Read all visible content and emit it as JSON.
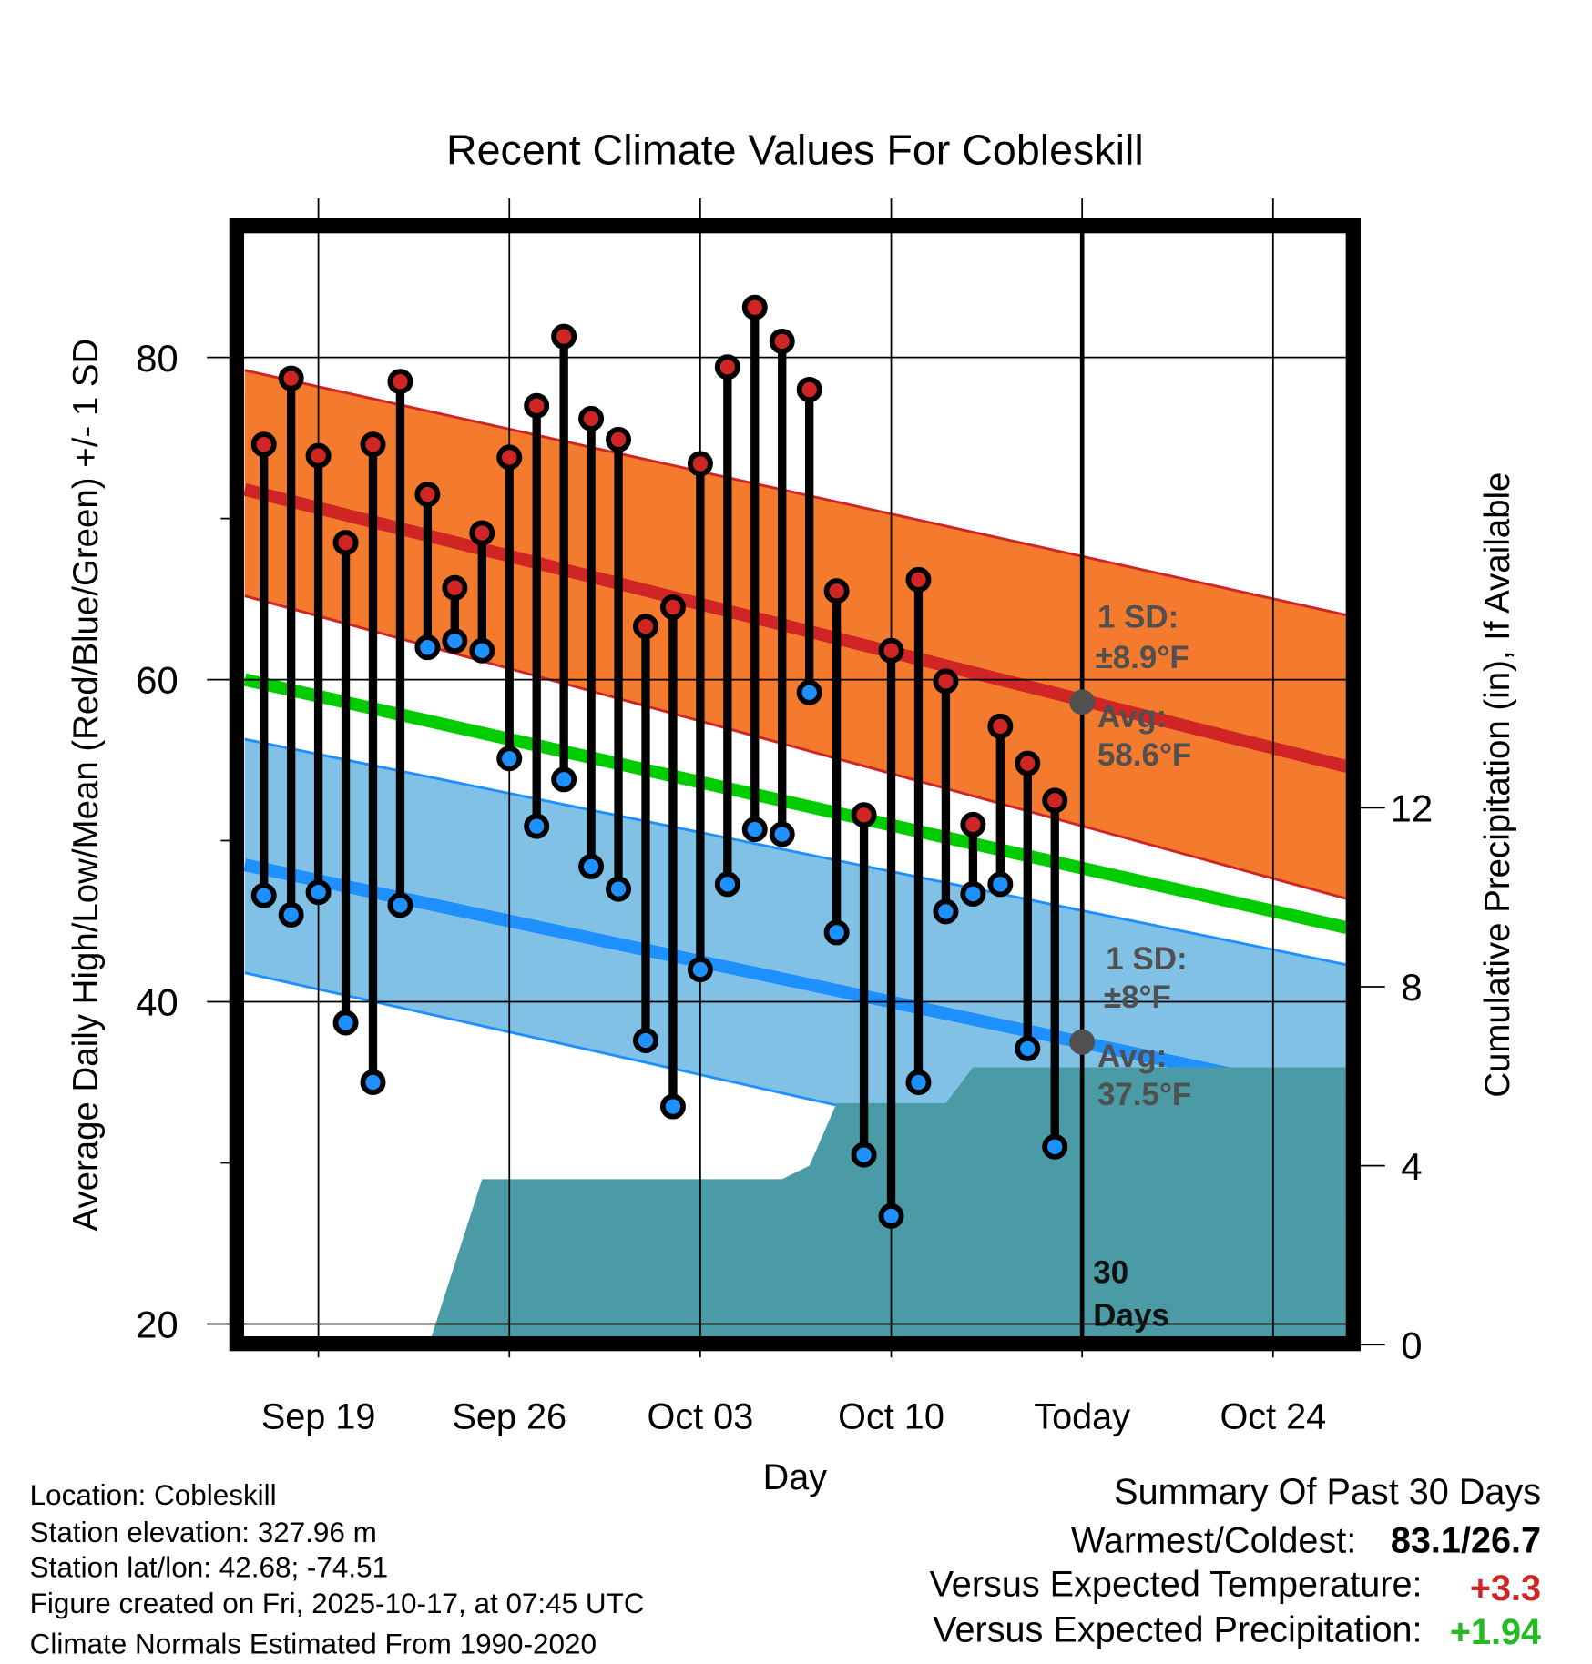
{
  "chart_data": {
    "type": "line",
    "title": "Recent Climate Values For Cobleskill",
    "xlabel": "Day",
    "ylabel": "Average Daily High/Low/Mean (Red/Blue/Green) +/- 1 SD",
    "y2label": "Cumulative Precipitation (in), If Available",
    "ylim": [
      19.2,
      87.0
    ],
    "y2lim": [
      0,
      16
    ],
    "yticks": [
      20,
      40,
      60,
      80
    ],
    "y_minor_ticks": [
      30,
      50,
      70
    ],
    "y2ticks": [
      0,
      4,
      8,
      12
    ],
    "x_start_day": "Sep 17",
    "xlim_days": [
      -0.7,
      39.7
    ],
    "xticks": [
      {
        "label": "Sep 19",
        "day": 2
      },
      {
        "label": "Sep 26",
        "day": 9
      },
      {
        "label": "Oct 03",
        "day": 16
      },
      {
        "label": "Oct 10",
        "day": 23
      },
      {
        "label": "Today",
        "day": 30
      },
      {
        "label": "Oct 24",
        "day": 37
      }
    ],
    "grid": true,
    "days": [
      "Sep 17",
      "Sep 18",
      "Sep 19",
      "Sep 20",
      "Sep 21",
      "Sep 22",
      "Sep 23",
      "Sep 24",
      "Sep 25",
      "Sep 26",
      "Sep 27",
      "Sep 28",
      "Sep 29",
      "Sep 30",
      "Oct 01",
      "Oct 02",
      "Oct 03",
      "Oct 04",
      "Oct 05",
      "Oct 06",
      "Oct 07",
      "Oct 08",
      "Oct 09",
      "Oct 10",
      "Oct 11",
      "Oct 12",
      "Oct 13",
      "Oct 14",
      "Oct 15",
      "Oct 16"
    ],
    "highs": [
      74.6,
      78.7,
      73.9,
      68.5,
      74.6,
      78.5,
      71.5,
      65.7,
      69.1,
      73.8,
      77.0,
      81.3,
      76.2,
      74.9,
      63.3,
      64.5,
      73.4,
      79.4,
      83.1,
      81.0,
      78.0,
      65.5,
      51.6,
      61.8,
      66.2,
      59.9,
      51.0,
      57.1,
      54.8,
      52.5
    ],
    "lows": [
      46.6,
      45.4,
      46.8,
      38.7,
      35.0,
      46.0,
      62.0,
      62.4,
      61.8,
      55.1,
      50.9,
      53.8,
      48.4,
      47.0,
      37.6,
      33.5,
      42.0,
      47.3,
      50.7,
      50.4,
      59.2,
      44.3,
      30.5,
      26.7,
      35.0,
      45.6,
      46.7,
      47.3,
      37.1,
      31.0
    ],
    "normals": {
      "high_avg": [
        71.8,
        54.6
      ],
      "high_upper": [
        79.2,
        64.0
      ],
      "high_lower": [
        65.2,
        46.4
      ],
      "mean": [
        60.0,
        44.6
      ],
      "low_avg": [
        48.5,
        34.0
      ],
      "low_upper": [
        56.3,
        42.3
      ],
      "low_lower": [
        41.8,
        26.5
      ]
    },
    "precip_cumulative": [
      [
        -0.7,
        0
      ],
      [
        6.05,
        0
      ],
      [
        8,
        3.7
      ],
      [
        19,
        3.7
      ],
      [
        20,
        4.0
      ],
      [
        21,
        5.4
      ],
      [
        25,
        5.4
      ],
      [
        26,
        6.2
      ],
      [
        39.7,
        6.2
      ]
    ],
    "today_marker": {
      "day": 30,
      "label_number": "30",
      "label_unit": "Days"
    },
    "annotations": {
      "high_sd": "1 SD:",
      "high_sd_value": "±8.9°F",
      "high_avg": "Avg:",
      "high_avg_value": "58.6°F",
      "high_avg_num": 58.6,
      "low_sd": "1 SD:",
      "low_sd_value": "±8°F",
      "low_avg": "Avg:",
      "low_avg_value": "37.5°F",
      "low_avg_num": 37.5
    },
    "colors": {
      "high_band": "#f47a2e",
      "high_line": "#d02525",
      "mean_line": "#00cc00",
      "low_band": "#82c1e6",
      "low_line": "#1e90ff",
      "precip": "#4a9ba5",
      "high_dot": "#d02525",
      "low_dot": "#1e90ff"
    }
  },
  "info": {
    "location": "Location: Cobleskill",
    "elevation": "Station elevation: 327.96 m",
    "latlon": "Station lat/lon: 42.68; -74.51",
    "created": "Figure created on Fri, 2025-10-17, at 07:45 UTC",
    "normals": "Climate Normals Estimated From 1990-2020"
  },
  "summary": {
    "title": "Summary Of Past 30 Days",
    "warm_cold_label": "Warmest/Coldest:",
    "warm_cold_value": "83.1/26.7",
    "temp_label": "Versus Expected Temperature:",
    "temp_value": "+3.3",
    "precip_label": "Versus Expected Precipitation:",
    "precip_value": "+1.94"
  }
}
